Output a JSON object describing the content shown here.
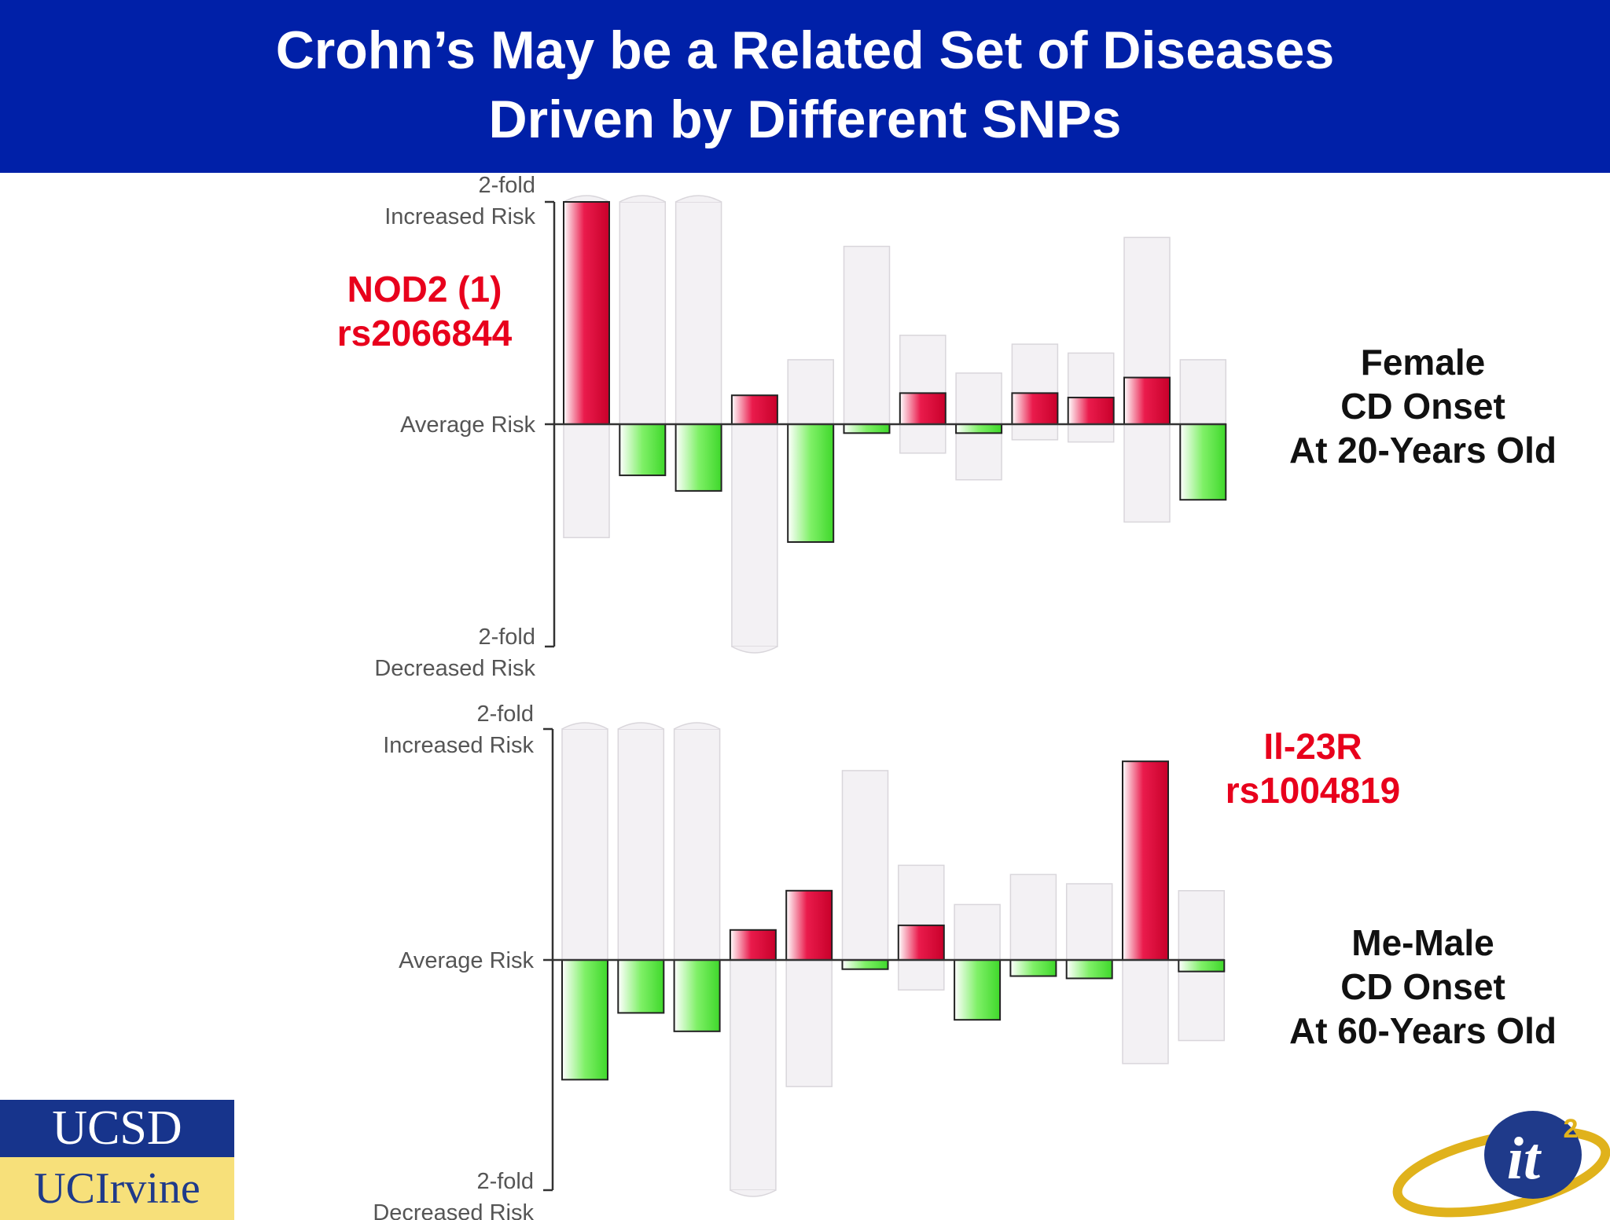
{
  "header": {
    "title_line1": "Crohn’s May be a Related Set of Diseases",
    "title_line2": "Driven by Different SNPs",
    "background": "#0020a8"
  },
  "colors": {
    "increased": "#e8003a",
    "decreased": "#4fdf3a",
    "range": "#f3f1f4",
    "range_stroke": "#d9d6db",
    "annotation": "#e8001c"
  },
  "annotations": {
    "top_snp_line1": "NOD2 (1)",
    "top_snp_line2": "rs2066844",
    "bottom_snp_line1": "Il-23R",
    "bottom_snp_line2": "rs1004819"
  },
  "panel_labels": {
    "top": [
      "Female",
      "CD Onset",
      "At 20-Years Old"
    ],
    "bottom": [
      "Me-Male",
      "CD Onset",
      "At 60-Years Old"
    ]
  },
  "logos": {
    "ucsd": "UCSD",
    "uci": "UCIrvine",
    "it2": "it",
    "it2_sup": "2"
  },
  "chart_data": [
    {
      "type": "bar",
      "title": "",
      "y_tick_labels": {
        "top": [
          "2-fold",
          "Increased Risk"
        ],
        "middle": "Average Risk",
        "bottom": [
          "2-fold",
          "Decreased Risk"
        ]
      },
      "ylim": [
        -1,
        1
      ],
      "value_note": "values are relative risk on a scale where 1 = 2-fold increased, 0 = average, -1 = 2-fold decreased",
      "values": [
        1.0,
        -0.23,
        -0.3,
        0.13,
        -0.53,
        -0.04,
        0.14,
        -0.04,
        0.14,
        0.12,
        0.21,
        -0.34
      ],
      "range_max": [
        1.0,
        1.0,
        1.0,
        0.0,
        0.29,
        0.8,
        0.4,
        0.23,
        0.36,
        0.32,
        0.84,
        0.29
      ],
      "range_min": [
        -0.51,
        0.0,
        0.0,
        -1.0,
        0.0,
        0.0,
        -0.13,
        -0.25,
        -0.07,
        -0.08,
        -0.44,
        0.0
      ]
    },
    {
      "type": "bar",
      "title": "",
      "y_tick_labels": {
        "top": [
          "2-fold",
          "Increased Risk"
        ],
        "middle": "Average Risk",
        "bottom": [
          "2-fold",
          "Decreased Risk"
        ]
      },
      "ylim": [
        -1,
        1
      ],
      "values": [
        -0.52,
        -0.23,
        -0.31,
        0.13,
        0.3,
        -0.04,
        0.15,
        -0.26,
        -0.07,
        -0.08,
        0.86,
        -0.05
      ],
      "range_max": [
        1.0,
        1.0,
        1.0,
        0.0,
        0.0,
        0.82,
        0.41,
        0.24,
        0.37,
        0.33,
        0.86,
        0.3
      ],
      "range_min": [
        0.0,
        0.0,
        0.0,
        -1.0,
        -0.55,
        0.0,
        -0.13,
        0.0,
        0.0,
        0.0,
        -0.45,
        -0.35
      ]
    }
  ]
}
